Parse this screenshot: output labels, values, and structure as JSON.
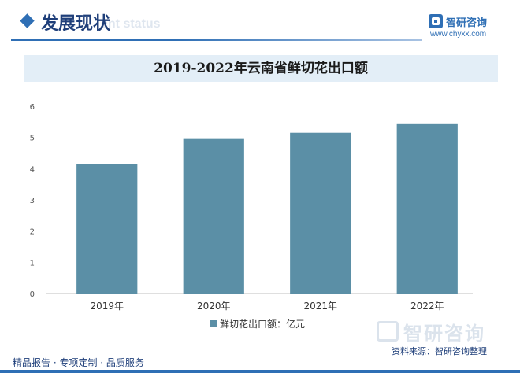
{
  "header": {
    "section_title": "发展现状",
    "section_ghost": "ent status",
    "brand_name": "智研咨询",
    "brand_url": "www.chyxx.com"
  },
  "chart_data": {
    "type": "bar",
    "title": "2019-2022年云南省鲜切花出口额",
    "categories": [
      "2019年",
      "2020年",
      "2021年",
      "2022年"
    ],
    "series": [
      {
        "name": "鲜切花出口额：亿元",
        "values": [
          4.15,
          4.95,
          5.15,
          5.45
        ]
      }
    ],
    "yticks": [
      0,
      1,
      2,
      3,
      4,
      5,
      6
    ],
    "ylim": [
      0,
      6
    ],
    "grid": false,
    "legend_position": "bottom",
    "bar_color": "#5b8fa6"
  },
  "footer": {
    "source": "资料来源：智研咨询整理",
    "left_text": "精品报告 · 专项定制 · 品质服务",
    "watermark": "智研咨询"
  }
}
